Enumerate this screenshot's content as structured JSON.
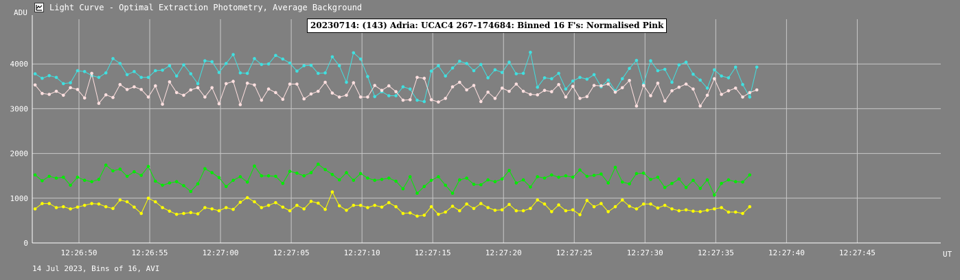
{
  "window": {
    "title": "Light Curve - Optimal Extraction Photometry, Average Background",
    "icon": "light-curve-icon"
  },
  "footer": "14 Jul 2023, Bins of 16, AVI",
  "chart_data": {
    "type": "line",
    "title": "20230714: (143) Adria: UCAC4 267-174684: Binned 16 F's: Normalised Pink",
    "ylabel": "ADU",
    "xlabel": "UT",
    "ylim": [
      0,
      5000
    ],
    "y_ticks": [
      0,
      1000,
      2000,
      3000,
      4000
    ],
    "x_tick_labels": [
      "12:26:50",
      "12:26:55",
      "12:27:00",
      "12:27:05",
      "12:27:10",
      "12:27:15",
      "12:27:20",
      "12:27:25",
      "12:27:30",
      "12:27:35",
      "12:27:40",
      "12:27:45"
    ],
    "x_ticks_seconds_after_12_26_50": [
      0,
      5,
      10,
      15,
      20,
      25,
      30,
      35,
      40,
      45,
      50,
      55
    ],
    "x_range_seconds": [
      -3.3,
      60.9
    ],
    "sample_interval_seconds": 0.5,
    "first_sample_seconds": -3.1,
    "grid": true,
    "background": "#808080",
    "series": [
      {
        "color": "#40e0e0",
        "values": [
          3780,
          3680,
          3740,
          3700,
          3560,
          3580,
          3850,
          3830,
          3740,
          3700,
          3800,
          4120,
          4010,
          3760,
          3830,
          3700,
          3700,
          3850,
          3860,
          3960,
          3730,
          3980,
          3780,
          3560,
          4070,
          4050,
          3810,
          4010,
          4210,
          3800,
          3790,
          4120,
          3990,
          4000,
          4190,
          4110,
          4020,
          3840,
          3960,
          3970,
          3790,
          3800,
          4160,
          3960,
          3590,
          4250,
          4110,
          3720,
          3270,
          3380,
          3290,
          3290,
          3490,
          3440,
          3190,
          3160,
          3840,
          3960,
          3730,
          3910,
          4060,
          4010,
          3850,
          3990,
          3690,
          3870,
          3810,
          4040,
          3780,
          3790,
          4260,
          3480,
          3690,
          3670,
          3790,
          3440,
          3620,
          3700,
          3660,
          3760,
          3490,
          3640,
          3400,
          3670,
          3900,
          4080,
          3550,
          4070,
          3850,
          3880,
          3590,
          3980,
          4040,
          3770,
          3640,
          3460,
          3870,
          3730,
          3690,
          3930,
          3540,
          3260,
          3930
        ]
      },
      {
        "color": "#ffe0e0",
        "values": [
          3530,
          3340,
          3320,
          3390,
          3300,
          3470,
          3430,
          3240,
          3790,
          3120,
          3310,
          3250,
          3540,
          3430,
          3490,
          3430,
          3260,
          3510,
          3100,
          3600,
          3360,
          3300,
          3420,
          3470,
          3260,
          3470,
          3110,
          3560,
          3610,
          3090,
          3570,
          3530,
          3190,
          3440,
          3360,
          3210,
          3550,
          3550,
          3220,
          3330,
          3390,
          3590,
          3350,
          3260,
          3300,
          3580,
          3260,
          3260,
          3520,
          3410,
          3510,
          3380,
          3190,
          3200,
          3700,
          3680,
          3200,
          3150,
          3230,
          3490,
          3590,
          3420,
          3520,
          3160,
          3370,
          3230,
          3460,
          3390,
          3550,
          3390,
          3320,
          3310,
          3410,
          3380,
          3540,
          3260,
          3500,
          3230,
          3270,
          3520,
          3510,
          3550,
          3370,
          3470,
          3630,
          3060,
          3520,
          3290,
          3570,
          3170,
          3400,
          3480,
          3550,
          3440,
          3060,
          3300,
          3670,
          3320,
          3400,
          3460,
          3260,
          3360,
          3420
        ]
      },
      {
        "color": "#00ee00",
        "values": [
          1520,
          1390,
          1490,
          1450,
          1470,
          1290,
          1470,
          1400,
          1370,
          1420,
          1740,
          1610,
          1650,
          1490,
          1590,
          1510,
          1710,
          1380,
          1290,
          1340,
          1370,
          1280,
          1150,
          1320,
          1660,
          1570,
          1460,
          1260,
          1400,
          1480,
          1360,
          1720,
          1500,
          1500,
          1490,
          1330,
          1600,
          1560,
          1500,
          1570,
          1760,
          1640,
          1530,
          1410,
          1570,
          1400,
          1550,
          1450,
          1400,
          1420,
          1450,
          1380,
          1210,
          1480,
          1110,
          1260,
          1400,
          1480,
          1290,
          1110,
          1410,
          1450,
          1310,
          1300,
          1410,
          1370,
          1430,
          1620,
          1340,
          1410,
          1250,
          1480,
          1450,
          1520,
          1470,
          1500,
          1470,
          1630,
          1490,
          1510,
          1540,
          1340,
          1690,
          1360,
          1320,
          1550,
          1560,
          1420,
          1470,
          1240,
          1330,
          1430,
          1240,
          1400,
          1220,
          1410,
          1070,
          1330,
          1410,
          1370,
          1360,
          1520
        ]
      },
      {
        "color": "#ffff00",
        "values": [
          760,
          880,
          880,
          790,
          810,
          760,
          800,
          840,
          880,
          870,
          810,
          770,
          960,
          920,
          800,
          660,
          1000,
          920,
          790,
          710,
          640,
          660,
          680,
          650,
          790,
          760,
          720,
          790,
          750,
          910,
          1010,
          920,
          790,
          840,
          900,
          800,
          720,
          840,
          760,
          930,
          890,
          750,
          1140,
          830,
          730,
          840,
          840,
          790,
          840,
          800,
          900,
          810,
          660,
          670,
          600,
          620,
          810,
          640,
          690,
          820,
          720,
          870,
          770,
          880,
          790,
          730,
          740,
          860,
          720,
          720,
          770,
          960,
          870,
          700,
          850,
          720,
          740,
          630,
          950,
          810,
          880,
          700,
          810,
          960,
          820,
          760,
          870,
          870,
          780,
          840,
          760,
          720,
          740,
          710,
          700,
          730,
          760,
          790,
          690,
          690,
          660,
          810
        ]
      }
    ]
  }
}
